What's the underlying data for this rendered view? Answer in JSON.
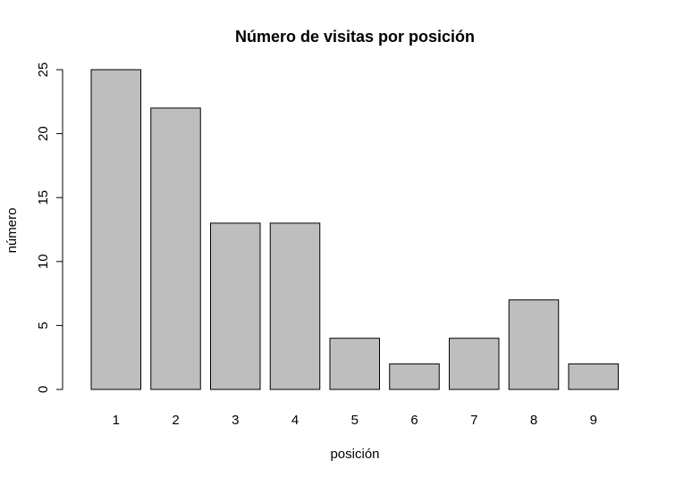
{
  "chart_data": {
    "type": "bar",
    "title": "Número de visitas por posición",
    "xlabel": "posición",
    "ylabel": "número",
    "categories": [
      "1",
      "2",
      "3",
      "4",
      "5",
      "6",
      "7",
      "8",
      "9"
    ],
    "values": [
      25,
      22,
      13,
      13,
      4,
      2,
      4,
      7,
      2
    ],
    "ylim": [
      0,
      25
    ],
    "yticks": [
      "0",
      "5",
      "10",
      "15",
      "20",
      "25"
    ],
    "grid": false,
    "bar_color": "#bebebe",
    "bar_border_color": "#000000"
  }
}
